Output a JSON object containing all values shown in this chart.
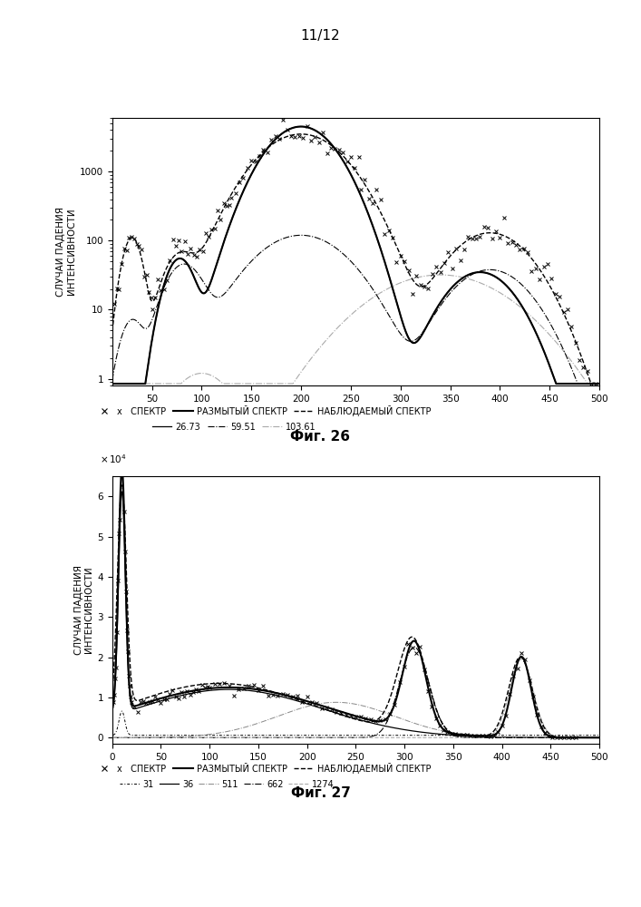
{
  "page_label": "11/12",
  "fig26_title": "Фиг. 26",
  "fig27_title": "Фиг. 27",
  "ylabel": "СЛУЧАИ ПАДЕНИЯ\nИНТЕНСИВНОСТИ",
  "legend_row1_labels": [
    "x   СПЕКТР",
    "РАЗМЫТЫЙ СПЕКТР",
    "НАБЛЮДАЕМЫЙ СПЕКТР"
  ],
  "fig26_legend_row2": [
    "26.73",
    "59.51",
    "103.61"
  ],
  "fig27_legend_row2": [
    "31",
    "36",
    "511",
    "662",
    "1274"
  ],
  "fig26_xlim": [
    10,
    500
  ],
  "fig26_ylim_log": [
    0.8,
    6000
  ],
  "fig27_xlim": [
    0,
    500
  ],
  "fig27_ylim": [
    -0.15,
    6.5
  ]
}
